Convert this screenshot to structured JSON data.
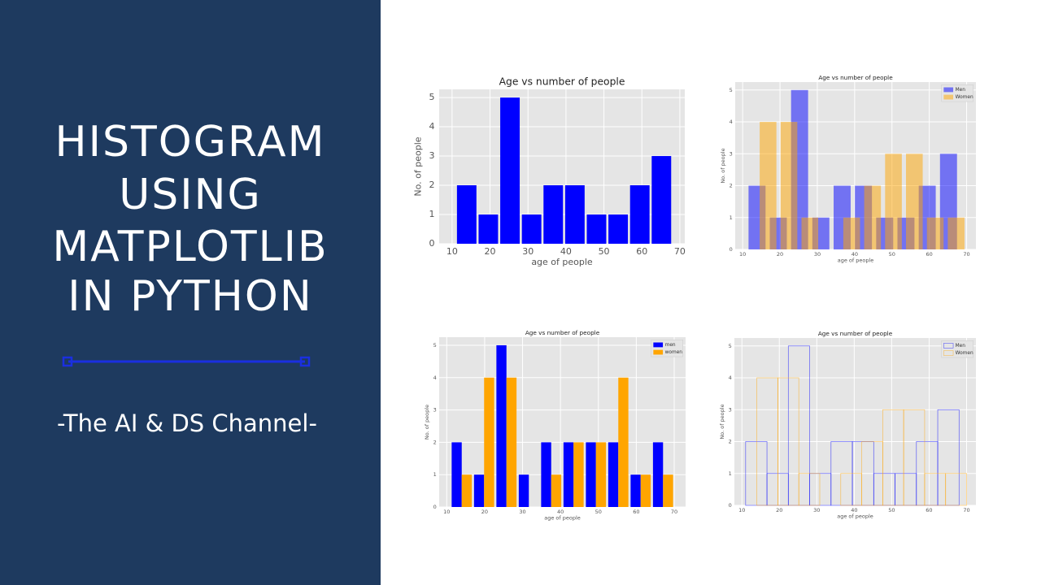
{
  "banner": {
    "title_lines": [
      "HISTOGRAM",
      "USING",
      "MATPLOTLIB",
      "IN PYTHON"
    ],
    "subtitle": "-The AI & DS Channel-"
  },
  "chart_data": [
    {
      "type": "histogram",
      "histtype": "bar",
      "title": "Age vs number of people",
      "xlabel": "age of people",
      "ylabel": "No. of people",
      "bins": [
        11,
        16.7,
        22.4,
        28.1,
        33.8,
        39.5,
        45.2,
        50.9,
        56.6,
        62.3,
        68
      ],
      "values": [
        2,
        1,
        5,
        1,
        2,
        2,
        1,
        1,
        2,
        3
      ],
      "color": "#0000ff",
      "xlim": [
        6.6,
        71.3
      ],
      "ylim": [
        0,
        5.28
      ],
      "xticks": [
        10,
        20,
        30,
        40,
        50,
        60,
        70
      ],
      "yticks": [
        0,
        1,
        2,
        3,
        4,
        5
      ],
      "grid": true
    },
    {
      "type": "histogram",
      "histtype": "bar",
      "alpha": 0.5,
      "title": "Age vs number of people",
      "xlabel": "age of people",
      "ylabel": "No. of people",
      "series": [
        {
          "name": "Men",
          "color": "#0000ff",
          "bins": [
            11,
            16.7,
            22.4,
            28.1,
            33.8,
            39.5,
            45.2,
            50.9,
            56.6,
            62.3,
            68
          ],
          "values": [
            2,
            1,
            5,
            1,
            2,
            2,
            1,
            1,
            2,
            3
          ]
        },
        {
          "name": "Women",
          "color": "#ffa500",
          "bins": [
            14,
            19.6,
            25.2,
            30.8,
            36.4,
            42,
            47.6,
            53.2,
            58.8,
            64.4,
            70
          ],
          "values": [
            4,
            4,
            1,
            0,
            1,
            2,
            3,
            3,
            1,
            1
          ]
        }
      ],
      "xlim": [
        8,
        72.5
      ],
      "ylim": [
        0,
        5.25
      ],
      "xticks": [
        10,
        20,
        30,
        40,
        50,
        60,
        70
      ],
      "yticks": [
        0,
        1,
        2,
        3,
        4,
        5
      ],
      "grid": true,
      "legend": "upper right"
    },
    {
      "type": "histogram",
      "histtype": "bar",
      "title": "Age vs number of people",
      "xlabel": "age of people",
      "ylabel": "No. of people",
      "bins": [
        11,
        16.9,
        22.8,
        28.7,
        34.6,
        40.5,
        46.4,
        52.3,
        58.2,
        64.1,
        70
      ],
      "series": [
        {
          "name": "men",
          "color": "#0000ff",
          "values": [
            2,
            1,
            5,
            1,
            2,
            2,
            2,
            2,
            1,
            2
          ]
        },
        {
          "name": "women",
          "color": "#ffa500",
          "values": [
            1,
            4,
            4,
            0,
            1,
            2,
            2,
            4,
            1,
            1
          ]
        }
      ],
      "xlim": [
        8,
        73
      ],
      "ylim": [
        0,
        5.25
      ],
      "xticks": [
        10,
        20,
        30,
        40,
        50,
        60,
        70
      ],
      "yticks": [
        0,
        1,
        2,
        3,
        4,
        5
      ],
      "grid": true,
      "legend": "upper right"
    },
    {
      "type": "histogram",
      "histtype": "step",
      "title": "Age vs number of people",
      "xlabel": "age of people",
      "ylabel": "No. of people",
      "series": [
        {
          "name": "Men",
          "color": "#0000ff",
          "bins": [
            11,
            16.7,
            22.4,
            28.1,
            33.8,
            39.5,
            45.2,
            50.9,
            56.6,
            62.3,
            68
          ],
          "values": [
            2,
            1,
            5,
            1,
            2,
            2,
            1,
            1,
            2,
            3
          ]
        },
        {
          "name": "Women",
          "color": "#ffa500",
          "bins": [
            14,
            19.6,
            25.2,
            30.8,
            36.4,
            42,
            47.6,
            53.2,
            58.8,
            64.4,
            70
          ],
          "values": [
            4,
            4,
            1,
            0,
            1,
            2,
            3,
            3,
            1,
            1
          ]
        }
      ],
      "xlim": [
        8,
        72.5
      ],
      "ylim": [
        0,
        5.25
      ],
      "xticks": [
        10,
        20,
        30,
        40,
        50,
        60,
        70
      ],
      "yticks": [
        0,
        1,
        2,
        3,
        4,
        5
      ],
      "grid": true,
      "legend": "upper right"
    }
  ]
}
